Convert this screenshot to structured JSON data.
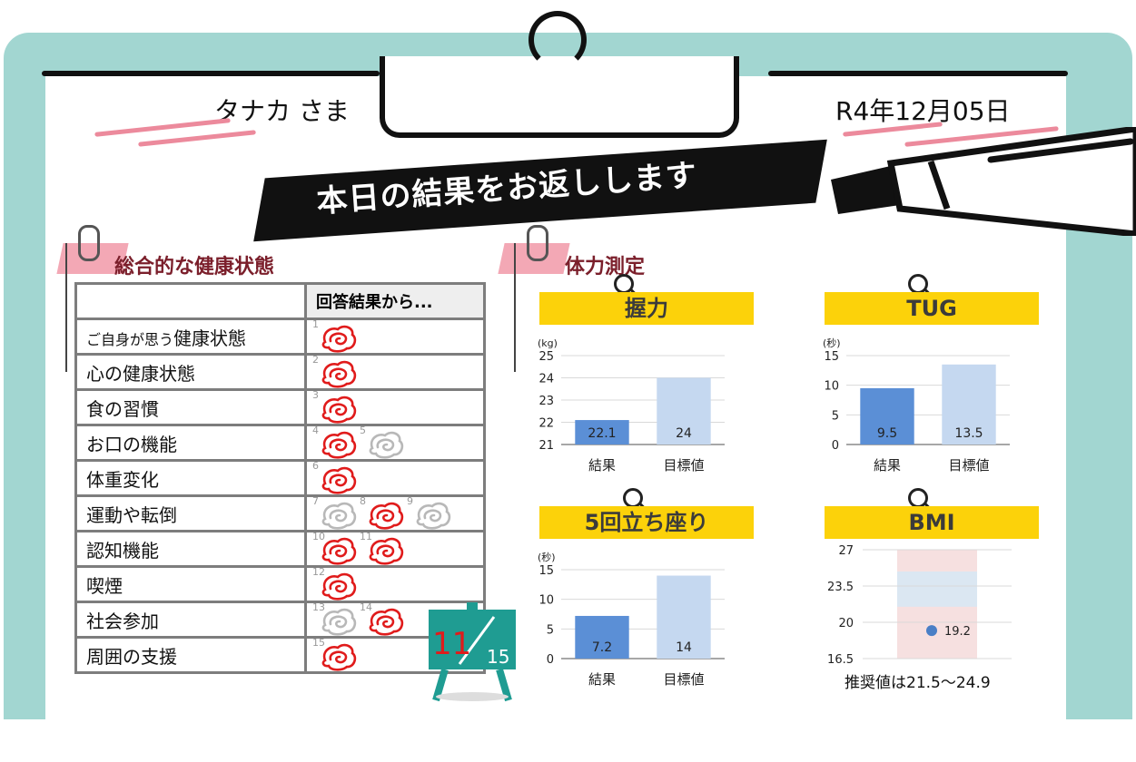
{
  "header": {
    "name": "タナカ さま",
    "date": "R4年12月05日",
    "banner": "本日の結果をお返しします"
  },
  "health": {
    "title": "総合的な健康状態",
    "column_header": "回答結果から...",
    "rows": [
      {
        "label_prefix": "ご自身が思う",
        "label": "健康状態",
        "marks": [
          {
            "n": "1",
            "state": "red"
          }
        ]
      },
      {
        "label_prefix": "",
        "label": "心の健康状態",
        "marks": [
          {
            "n": "2",
            "state": "red"
          }
        ]
      },
      {
        "label_prefix": "",
        "label": "食の習慣",
        "marks": [
          {
            "n": "3",
            "state": "red"
          }
        ]
      },
      {
        "label_prefix": "",
        "label": "お口の機能",
        "marks": [
          {
            "n": "4",
            "state": "red"
          },
          {
            "n": "5",
            "state": "grey"
          }
        ]
      },
      {
        "label_prefix": "",
        "label": "体重変化",
        "marks": [
          {
            "n": "6",
            "state": "red"
          }
        ]
      },
      {
        "label_prefix": "",
        "label": "運動や転倒",
        "marks": [
          {
            "n": "7",
            "state": "grey"
          },
          {
            "n": "8",
            "state": "red"
          },
          {
            "n": "9",
            "state": "grey"
          }
        ]
      },
      {
        "label_prefix": "",
        "label": "認知機能",
        "marks": [
          {
            "n": "10",
            "state": "red"
          },
          {
            "n": "11",
            "state": "red"
          }
        ]
      },
      {
        "label_prefix": "",
        "label": "喫煙",
        "marks": [
          {
            "n": "12",
            "state": "red"
          }
        ]
      },
      {
        "label_prefix": "",
        "label": "社会参加",
        "marks": [
          {
            "n": "13",
            "state": "grey"
          },
          {
            "n": "14",
            "state": "red"
          }
        ]
      },
      {
        "label_prefix": "",
        "label": "周囲の支援",
        "marks": [
          {
            "n": "15",
            "state": "red"
          }
        ]
      }
    ],
    "score": {
      "value": "11",
      "total": "15"
    }
  },
  "fitness": {
    "title": "体力測定"
  },
  "colors": {
    "result": "#5b8fd6",
    "target": "#c5d8f0",
    "red_mark": "#e01b1b",
    "grey_mark": "#b8b8b8",
    "yellow": "#fcd20a"
  },
  "chart_data": [
    {
      "type": "bar",
      "title": "握力",
      "unit": "(kg)",
      "categories": [
        "結果",
        "目標値"
      ],
      "values": [
        22.1,
        24
      ],
      "labels": [
        "22.1",
        "24"
      ],
      "ylim": [
        21,
        25
      ],
      "yticks": [
        "21",
        "22",
        "23",
        "24",
        "25"
      ]
    },
    {
      "type": "bar",
      "title": "TUG",
      "unit": "(秒)",
      "categories": [
        "結果",
        "目標値"
      ],
      "values": [
        9.5,
        13.5
      ],
      "labels": [
        "9.5",
        "13.5"
      ],
      "ylim": [
        0,
        15
      ],
      "yticks": [
        "0",
        "5",
        "10",
        "15"
      ]
    },
    {
      "type": "bar",
      "title": "5回立ち座り",
      "unit": "(秒)",
      "categories": [
        "結果",
        "目標値"
      ],
      "values": [
        7.2,
        14
      ],
      "labels": [
        "7.2",
        "14"
      ],
      "ylim": [
        0,
        15
      ],
      "yticks": [
        "0",
        "5",
        "10",
        "15"
      ]
    },
    {
      "type": "scatter",
      "title": "BMI",
      "x": [
        1
      ],
      "y": [
        19.2
      ],
      "labels": [
        "19.2"
      ],
      "ylim": [
        16.5,
        27
      ],
      "yticks": [
        "16.5",
        "20",
        "23.5",
        "27"
      ],
      "note": "推奨値は21.5～24.9",
      "band": [
        21.5,
        24.9
      ]
    }
  ]
}
